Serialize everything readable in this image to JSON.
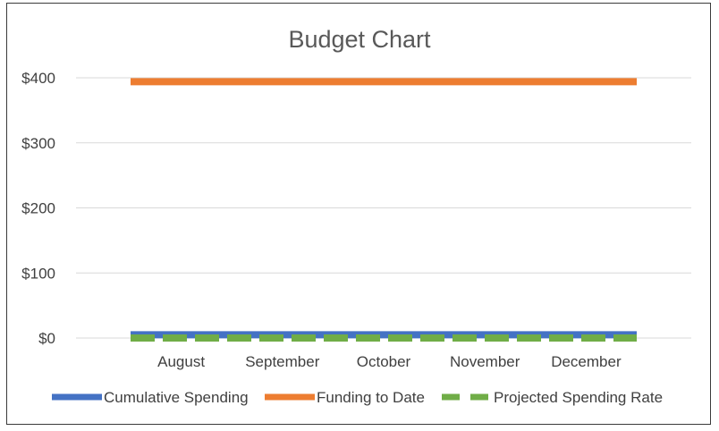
{
  "chart_data": {
    "type": "line",
    "title": "Budget Chart",
    "xlabel": "",
    "ylabel": "",
    "categories": [
      "August",
      "September",
      "October",
      "November",
      "December"
    ],
    "y_tick_labels": [
      "$0",
      "$100",
      "$200",
      "$300",
      "$400"
    ],
    "y_ticks": [
      0,
      100,
      200,
      300,
      400
    ],
    "ylim": [
      0,
      400
    ],
    "grid": true,
    "legend_position": "bottom",
    "series": [
      {
        "name": "Cumulative Spending",
        "values": [
          5,
          5,
          5,
          5,
          5
        ],
        "color": "#4472C4",
        "style": "solid"
      },
      {
        "name": "Funding to Date",
        "values": [
          394,
          394,
          394,
          394,
          394
        ],
        "color": "#ED7D31",
        "style": "solid"
      },
      {
        "name": "Projected Spending Rate",
        "values": [
          0,
          0,
          0,
          0,
          0
        ],
        "color": "#70AD47",
        "style": "dashed"
      }
    ]
  }
}
